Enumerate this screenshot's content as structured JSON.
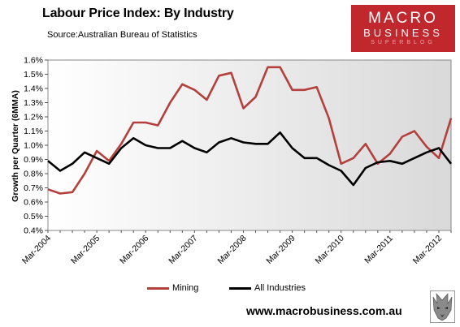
{
  "title": "Labour Price Index: By Industry",
  "source": "Source:Australian Bureau of Statistics",
  "logo": {
    "line1": "MACRO",
    "line2": "BUSINESS",
    "line3": "SUPERBLOG"
  },
  "website": "www.macrobusiness.com.au",
  "colors": {
    "mining": "#b3403c",
    "all_industries": "#000000",
    "logo_red": "#c0282d"
  },
  "chart_data": {
    "type": "line",
    "ylabel": "Growth per Quarter (6MMA)",
    "xlabel": "",
    "ylim": [
      0.4,
      1.6
    ],
    "yticks": [
      "0.4%",
      "0.5%",
      "0.6%",
      "0.7%",
      "0.8%",
      "0.9%",
      "1.0%",
      "1.1%",
      "1.2%",
      "1.3%",
      "1.4%",
      "1.5%",
      "1.6%"
    ],
    "x_tick_labels": [
      "Mar-2004",
      "Mar-2005",
      "Mar-2006",
      "Mar-2007",
      "Mar-2008",
      "Mar-2009",
      "Mar-2010",
      "Mar-2011",
      "Mar-2012"
    ],
    "x": [
      "Mar-2004",
      "Jun-2004",
      "Sep-2004",
      "Dec-2004",
      "Mar-2005",
      "Jun-2005",
      "Sep-2005",
      "Dec-2005",
      "Mar-2006",
      "Jun-2006",
      "Sep-2006",
      "Dec-2006",
      "Mar-2007",
      "Jun-2007",
      "Sep-2007",
      "Dec-2007",
      "Mar-2008",
      "Jun-2008",
      "Sep-2008",
      "Dec-2008",
      "Mar-2009",
      "Jun-2009",
      "Sep-2009",
      "Dec-2009",
      "Mar-2010",
      "Jun-2010",
      "Sep-2010",
      "Dec-2010",
      "Mar-2011",
      "Jun-2011",
      "Sep-2011",
      "Dec-2011",
      "Mar-2012",
      "Jun-2012"
    ],
    "series": [
      {
        "name": "Mining",
        "values": [
          0.69,
          0.66,
          0.67,
          0.8,
          0.96,
          0.89,
          1.01,
          1.16,
          1.16,
          1.14,
          1.3,
          1.43,
          1.39,
          1.32,
          1.49,
          1.51,
          1.26,
          1.34,
          1.55,
          1.55,
          1.39,
          1.39,
          1.41,
          1.19,
          0.87,
          0.91,
          1.01,
          0.87,
          0.94,
          1.06,
          1.1,
          0.99,
          0.91,
          1.19
        ]
      },
      {
        "name": "All Industries",
        "values": [
          0.89,
          0.82,
          0.87,
          0.95,
          0.91,
          0.87,
          0.98,
          1.05,
          1.0,
          0.98,
          0.98,
          1.03,
          0.98,
          0.95,
          1.02,
          1.05,
          1.02,
          1.01,
          1.01,
          1.09,
          0.98,
          0.91,
          0.91,
          0.86,
          0.82,
          0.72,
          0.84,
          0.88,
          0.89,
          0.87,
          0.91,
          0.95,
          0.98,
          0.87
        ]
      }
    ],
    "grid": false,
    "legend_position": "bottom"
  }
}
